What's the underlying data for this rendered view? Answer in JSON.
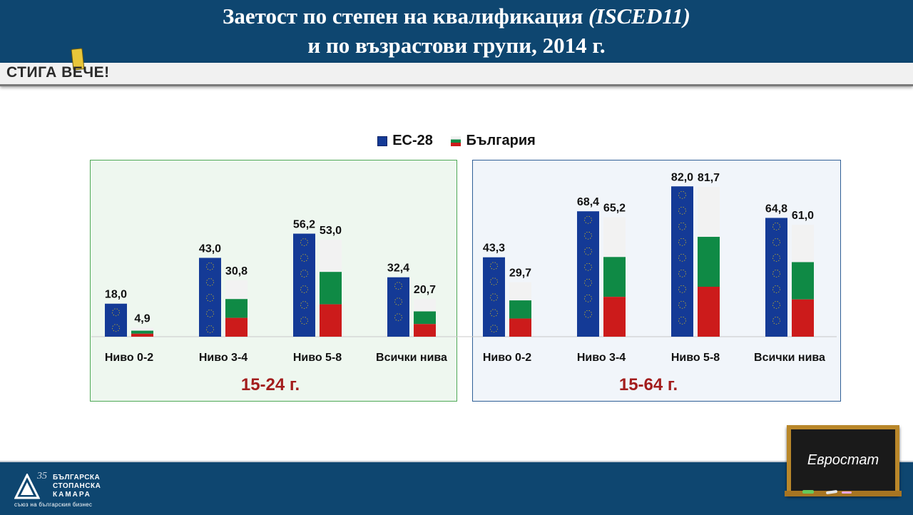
{
  "header": {
    "title_line1_main": "Заетост по степен на квалификация ",
    "title_line1_italic": "(ISCED11)",
    "title_line2": "и по възрастови групи, 2014 г.",
    "logo_text": "СТИГА ВЕЧЕ!"
  },
  "colors": {
    "header_bg": "#0e4670",
    "eu_bar": "#143a96",
    "bg_white": "#f2f2f2",
    "bg_green": "#0f8a45",
    "bg_red": "#cc1b1b",
    "group_label": "#a31d1d"
  },
  "footer": {
    "org_line1": "БЪЛГАРСКА",
    "org_line2": "СТОПАНСКА",
    "org_line3": "КАМАРА",
    "org_tagline": "съюз на българския бизнес",
    "org_years": "35",
    "source_label": "Евростат"
  },
  "chart_data": {
    "type": "bar",
    "legend": [
      "ЕС-28",
      "България"
    ],
    "legend_position": "top-center",
    "ylim": [
      0,
      90
    ],
    "groups": [
      {
        "label": "15-24 г.",
        "categories": [
          "Ниво 0-2",
          "Ниво 3-4",
          "Ниво 5-8",
          "Всички нива"
        ],
        "series": [
          {
            "name": "ЕС-28",
            "values": [
              18.0,
              43.0,
              56.2,
              32.4
            ],
            "labels": [
              "18,0",
              "43,0",
              "56,2",
              "32,4"
            ]
          },
          {
            "name": "България",
            "values": [
              4.9,
              30.8,
              53.0,
              20.7
            ],
            "labels": [
              "4,9",
              "30,8",
              "53,0",
              "20,7"
            ]
          }
        ]
      },
      {
        "label": "15-64 г.",
        "categories": [
          "Ниво 0-2",
          "Ниво 3-4",
          "Ниво 5-8",
          "Всички нива"
        ],
        "series": [
          {
            "name": "ЕС-28",
            "values": [
              43.3,
              68.4,
              82.0,
              64.8
            ],
            "labels": [
              "43,3",
              "68,4",
              "82,0",
              "64,8"
            ]
          },
          {
            "name": "България",
            "values": [
              29.7,
              65.2,
              81.7,
              61.0
            ],
            "labels": [
              "29,7",
              "65,2",
              "81,7",
              "61,0"
            ]
          }
        ]
      }
    ]
  }
}
